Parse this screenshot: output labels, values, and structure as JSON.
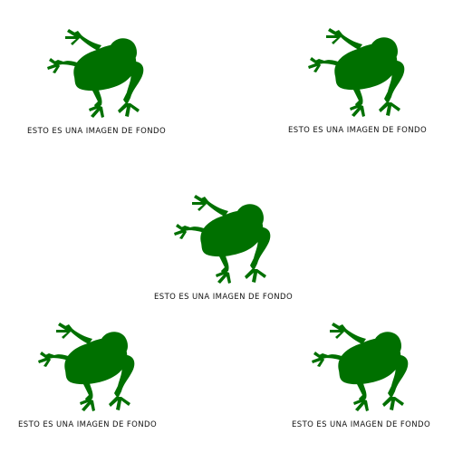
{
  "background": {
    "color": "#ffffff",
    "tile_icon": "frog-silhouette",
    "tile_color": "#007000",
    "tiles": [
      {
        "caption": "ESTO ES UNA IMAGEN DE FONDO"
      },
      {
        "caption": "ESTO ES UNA IMAGEN DE FONDO"
      },
      {
        "caption": "ESTO ES UNA IMAGEN DE FONDO"
      },
      {
        "caption": "ESTO ES UNA IMAGEN DE FONDO"
      },
      {
        "caption": "ESTO ES UNA IMAGEN DE FONDO"
      }
    ]
  }
}
